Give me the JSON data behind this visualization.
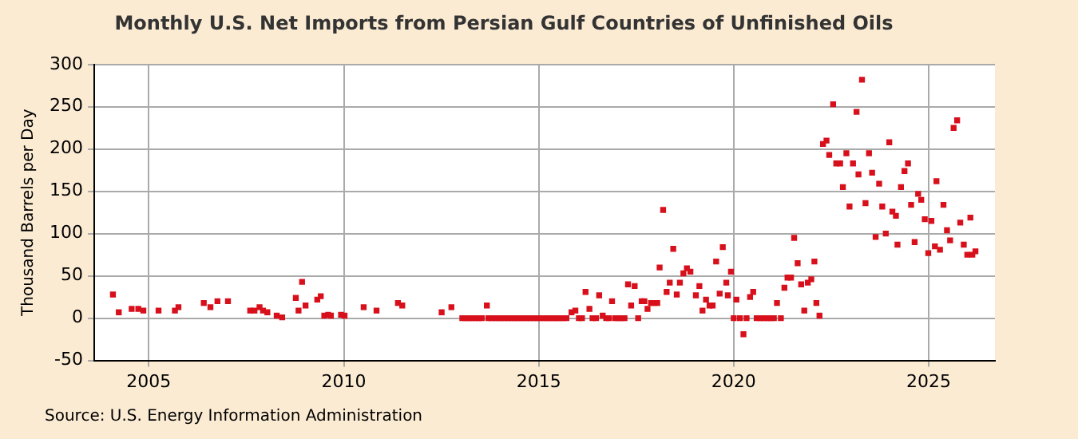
{
  "chart_data": {
    "type": "scatter",
    "title": "Monthly U.S. Net Imports from Persian Gulf Countries of Unfinished Oils",
    "ylabel": "Thousand Barrels per Day",
    "annotations": [
      "Source: U.S. Energy Information Administration"
    ],
    "xlim": [
      2003.6,
      2026.7
    ],
    "xticks": [
      2005,
      2010,
      2015,
      2020,
      2025
    ],
    "ylim": [
      -50,
      300
    ],
    "yticks": [
      -50,
      0,
      50,
      100,
      150,
      200,
      250,
      300
    ],
    "grid": true,
    "legend": false,
    "marker": "square",
    "series": [
      {
        "color": "#d7101c",
        "x": [
          2004.08,
          2004.23,
          2004.56,
          2004.73,
          2004.86,
          2005.25,
          2005.67,
          2005.76,
          2006.41,
          2006.58,
          2006.76,
          2007.03,
          2007.6,
          2007.71,
          2007.84,
          2007.93,
          2008.04,
          2008.28,
          2008.42,
          2008.77,
          2008.84,
          2008.93,
          2009.02,
          2009.32,
          2009.41,
          2009.5,
          2009.6,
          2009.67,
          2009.93,
          2010.02,
          2010.51,
          2010.84,
          2011.39,
          2011.5,
          2012.51,
          2012.76,
          2013.04,
          2013.13,
          2013.21,
          2013.29,
          2013.38,
          2013.46,
          2013.54,
          2013.67,
          2013.71,
          2013.79,
          2013.88,
          2013.96,
          2014.04,
          2014.13,
          2014.21,
          2014.29,
          2014.38,
          2014.46,
          2014.54,
          2014.63,
          2014.71,
          2014.79,
          2014.88,
          2014.96,
          2015.04,
          2015.13,
          2015.21,
          2015.29,
          2015.38,
          2015.46,
          2015.54,
          2015.63,
          2015.71,
          2015.84,
          2015.94,
          2016.03,
          2016.11,
          2016.2,
          2016.3,
          2016.38,
          2016.47,
          2016.55,
          2016.64,
          2016.73,
          2016.8,
          2016.88,
          2016.96,
          2017.04,
          2017.12,
          2017.2,
          2017.29,
          2017.37,
          2017.46,
          2017.55,
          2017.64,
          2017.71,
          2017.79,
          2017.88,
          2017.96,
          2018.04,
          2018.1,
          2018.19,
          2018.28,
          2018.36,
          2018.45,
          2018.54,
          2018.62,
          2018.71,
          2018.8,
          2018.89,
          2019.03,
          2019.12,
          2019.2,
          2019.29,
          2019.38,
          2019.46,
          2019.55,
          2019.64,
          2019.72,
          2019.81,
          2019.85,
          2019.93,
          2020.0,
          2020.07,
          2020.16,
          2020.25,
          2020.33,
          2020.42,
          2020.5,
          2020.59,
          2020.68,
          2020.77,
          2020.86,
          2020.94,
          2021.03,
          2021.11,
          2021.21,
          2021.3,
          2021.38,
          2021.47,
          2021.55,
          2021.64,
          2021.73,
          2021.81,
          2021.9,
          2021.99,
          2022.07,
          2022.12,
          2022.2,
          2022.29,
          2022.38,
          2022.45,
          2022.55,
          2022.63,
          2022.73,
          2022.8,
          2022.89,
          2022.97,
          2023.06,
          2023.15,
          2023.2,
          2023.29,
          2023.38,
          2023.47,
          2023.55,
          2023.64,
          2023.73,
          2023.81,
          2023.9,
          2023.99,
          2024.07,
          2024.16,
          2024.2,
          2024.29,
          2024.38,
          2024.47,
          2024.55,
          2024.64,
          2024.73,
          2024.81,
          2024.9,
          2024.99,
          2025.07,
          2025.16,
          2025.2,
          2025.29,
          2025.38,
          2025.47,
          2025.55,
          2025.64,
          2025.73,
          2025.81,
          2025.9,
          2025.99,
          2026.07,
          2026.12,
          2026.2
        ],
        "values": [
          28,
          7,
          11,
          11,
          9,
          9,
          9,
          13,
          18,
          13,
          20,
          20,
          9,
          9,
          13,
          9,
          7,
          3,
          1,
          24,
          9,
          43,
          15,
          22,
          26,
          3,
          4,
          3,
          4,
          3,
          13,
          9,
          18,
          15,
          7,
          13,
          0,
          0,
          0,
          0,
          0,
          0,
          0,
          15,
          0,
          0,
          0,
          0,
          0,
          0,
          0,
          0,
          0,
          0,
          0,
          0,
          0,
          0,
          0,
          0,
          0,
          0,
          0,
          0,
          0,
          0,
          0,
          0,
          0,
          7,
          9,
          0,
          0,
          31,
          11,
          0,
          0,
          27,
          3,
          0,
          0,
          20,
          0,
          0,
          0,
          0,
          40,
          15,
          38,
          0,
          20,
          20,
          11,
          18,
          18,
          18,
          60,
          128,
          31,
          42,
          82,
          28,
          42,
          53,
          59,
          55,
          27,
          38,
          9,
          22,
          15,
          15,
          67,
          29,
          84,
          42,
          27,
          55,
          0,
          22,
          0,
          -19,
          0,
          25,
          31,
          0,
          0,
          0,
          0,
          0,
          0,
          18,
          0,
          36,
          48,
          48,
          95,
          65,
          40,
          9,
          42,
          46,
          67,
          18,
          3,
          206,
          210,
          193,
          253,
          183,
          183,
          155,
          195,
          132,
          183,
          244,
          170,
          282,
          136,
          195,
          172,
          96,
          159,
          132,
          100,
          208,
          126,
          121,
          87,
          155,
          174,
          183,
          134,
          90,
          147,
          140,
          117,
          77,
          115,
          85,
          162,
          81,
          134,
          104,
          92,
          225,
          234,
          113,
          87,
          75,
          119,
          75,
          79
        ]
      }
    ]
  }
}
